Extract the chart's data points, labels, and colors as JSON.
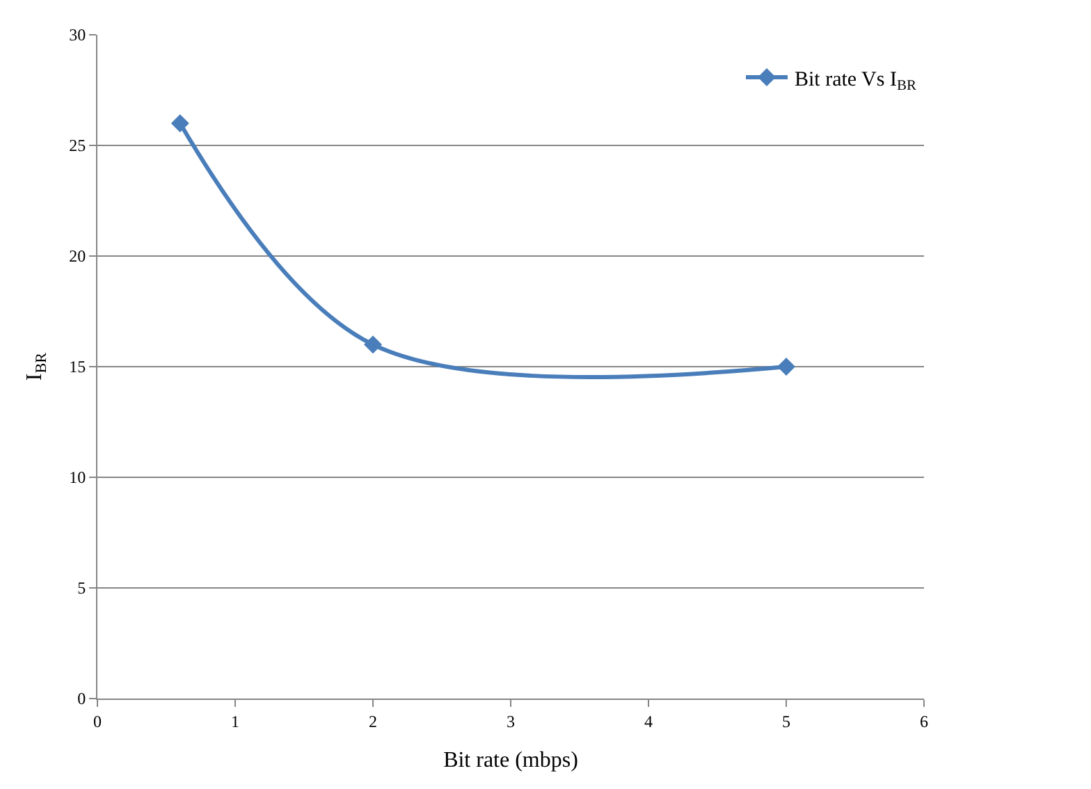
{
  "chart_data": {
    "type": "line",
    "xlabel": "Bit rate (mbps)",
    "ylabel": "I$_{BR}$",
    "x": [
      0.6,
      2,
      5
    ],
    "series": [
      {
        "name": "Bit rate Vs I$_{BR}$",
        "color": "#4a7ebb",
        "values": [
          26,
          16,
          15
        ]
      }
    ],
    "xlim": [
      0,
      6
    ],
    "xticks": [
      0,
      1,
      2,
      3,
      4,
      5,
      6
    ],
    "ylim": [
      0,
      30
    ],
    "yticks": [
      0,
      5,
      10,
      15,
      20,
      25,
      30
    ],
    "grid": "y",
    "legend": "top right",
    "marker": "diamond",
    "line_style": "solid"
  }
}
